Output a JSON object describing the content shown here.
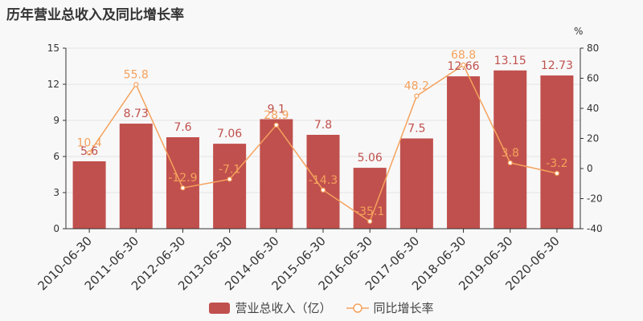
{
  "chart_data": {
    "type": "bar",
    "title": "历年营业总收入及同比增长率",
    "categories": [
      "2010-06-30",
      "2011-06-30",
      "2012-06-30",
      "2013-06-30",
      "2014-06-30",
      "2015-06-30",
      "2016-06-30",
      "2017-06-30",
      "2018-06-30",
      "2019-06-30",
      "2020-06-30"
    ],
    "series": [
      {
        "name": "营业总收入（亿）",
        "type": "bar",
        "axis": "left",
        "color": "#c0504d",
        "values": [
          5.6,
          8.73,
          7.6,
          7.06,
          9.1,
          7.8,
          5.06,
          7.5,
          12.66,
          13.15,
          12.73
        ],
        "labels": [
          "5.6",
          "8.73",
          "7.6",
          "7.06",
          "9.1",
          "7.8",
          "5.06",
          "7.5",
          "12.66",
          "13.15",
          "12.73"
        ]
      },
      {
        "name": "同比增长率",
        "type": "line",
        "axis": "right",
        "color": "#f5a25d",
        "values": [
          10.4,
          55.8,
          -12.9,
          -7.1,
          28.9,
          -14.3,
          -35.1,
          48.2,
          68.8,
          3.8,
          -3.2
        ],
        "labels": [
          "10.4",
          "55.8",
          "-12.9",
          "-7.1",
          "28.9",
          "-14.3",
          "-35.1",
          "48.2",
          "68.8",
          "3.8",
          "-3.2"
        ]
      }
    ],
    "y_left": {
      "min": 0,
      "max": 15,
      "ticks": [
        "0",
        "3",
        "6",
        "9",
        "12",
        "15"
      ]
    },
    "y_right": {
      "min": -40,
      "max": 80,
      "unit": "%",
      "ticks": [
        "-40",
        "-20",
        "0",
        "20",
        "40",
        "60",
        "80"
      ]
    },
    "grid": true,
    "legend_position": "bottom"
  }
}
